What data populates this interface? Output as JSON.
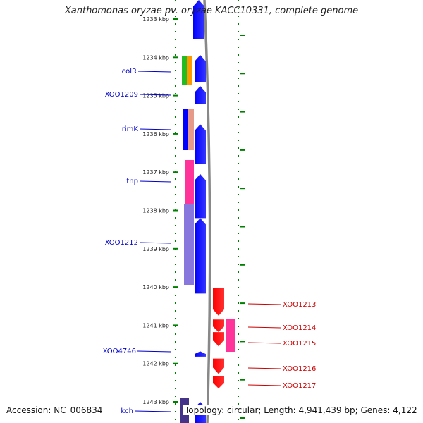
{
  "title": "Xanthomonas oryzae pv. oryzae KACC10331, complete genome",
  "footer": {
    "accession": "Accession: NC_006834",
    "summary": "Topology: circular; Length: 4,941,439 bp; Genes: 4,122"
  },
  "colors": {
    "forward": "#0000ff",
    "reverse": "#ff0000",
    "kbp_tick": "#008000",
    "backbone": "#888888"
  },
  "kbp_ticks": [
    {
      "label": "1233 kbp",
      "kb": 1233
    },
    {
      "label": "1234 kbp",
      "kb": 1234
    },
    {
      "label": "1235 kbp",
      "kb": 1235
    },
    {
      "label": "1236 kbp",
      "kb": 1236
    },
    {
      "label": "1237 kbp",
      "kb": 1237
    },
    {
      "label": "1238 kbp",
      "kb": 1238
    },
    {
      "label": "1239 kbp",
      "kb": 1239
    },
    {
      "label": "1240 kbp",
      "kb": 1240
    },
    {
      "label": "1241 kbp",
      "kb": 1241
    },
    {
      "label": "1242 kbp",
      "kb": 1242
    },
    {
      "label": "1243 kbp",
      "kb": 1243
    }
  ],
  "forward_genes": [
    {
      "label": "colR",
      "start": 1233.94,
      "end": 1234.65
    },
    {
      "label": "XOO1209",
      "start": 1234.75,
      "end": 1235.22
    },
    {
      "label": "rimK",
      "start": 1235.75,
      "end": 1236.78
    },
    {
      "label": "tnp",
      "start": 1237.05,
      "end": 1238.2
    },
    {
      "label": "XOO1212",
      "start": 1238.2,
      "end": 1240.17
    },
    {
      "label": "XOO4746",
      "start": 1241.68,
      "end": 1241.82
    },
    {
      "label": "kch",
      "start": 1243.0,
      "end": 1243.6
    }
  ],
  "reverse_genes": [
    {
      "label": "XOO1213",
      "start": 1240.03,
      "end": 1240.75
    },
    {
      "label": "XOO1214",
      "start": 1240.85,
      "end": 1241.18
    },
    {
      "label": "XOO1215",
      "start": 1241.18,
      "end": 1241.55
    },
    {
      "label": "XOO1216",
      "start": 1241.87,
      "end": 1242.27
    },
    {
      "label": "XOO1217",
      "start": 1242.32,
      "end": 1242.65
    }
  ]
}
